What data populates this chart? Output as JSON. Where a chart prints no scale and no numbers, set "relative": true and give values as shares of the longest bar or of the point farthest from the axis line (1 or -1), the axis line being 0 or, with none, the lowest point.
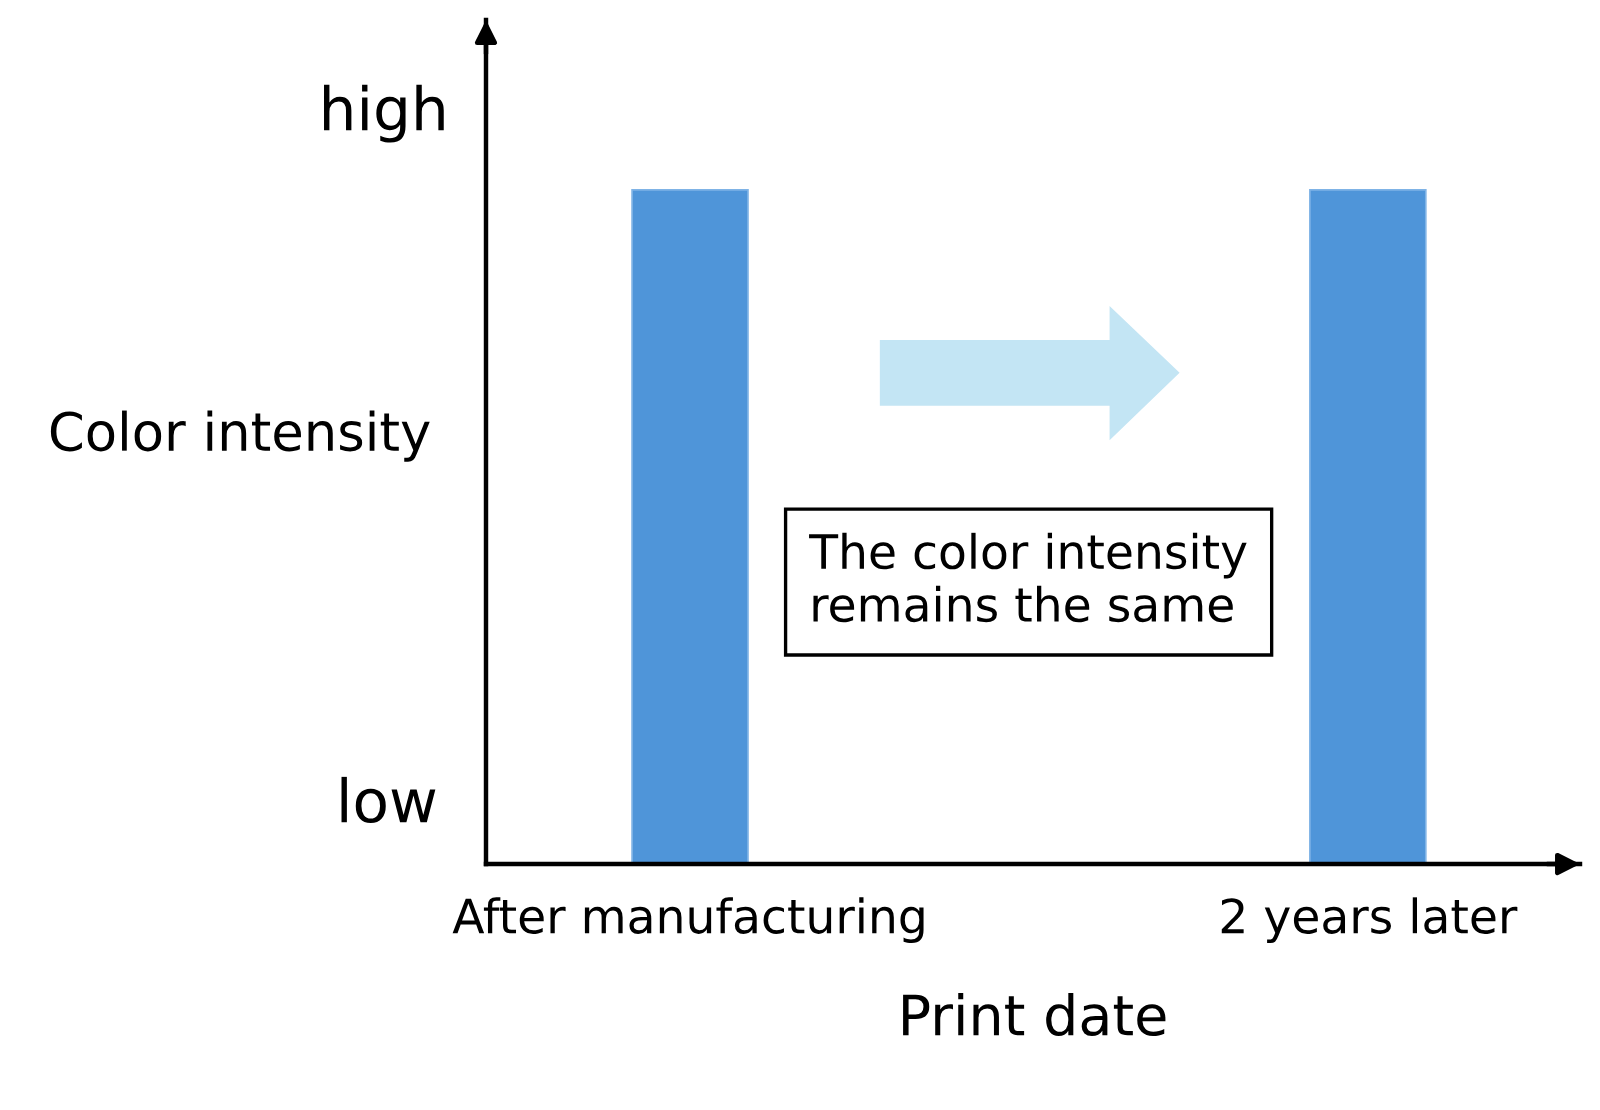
{
  "chart_data": {
    "type": "bar",
    "relative": true,
    "categories": [
      "After manufacturing",
      "2 years later"
    ],
    "values": [
      1,
      1
    ],
    "color": "#4f95d9",
    "xlabel": "Print date",
    "ylabel": "Color intensity",
    "annotations": [
      "high",
      "low",
      "The color intensity\nremains the same"
    ]
  }
}
